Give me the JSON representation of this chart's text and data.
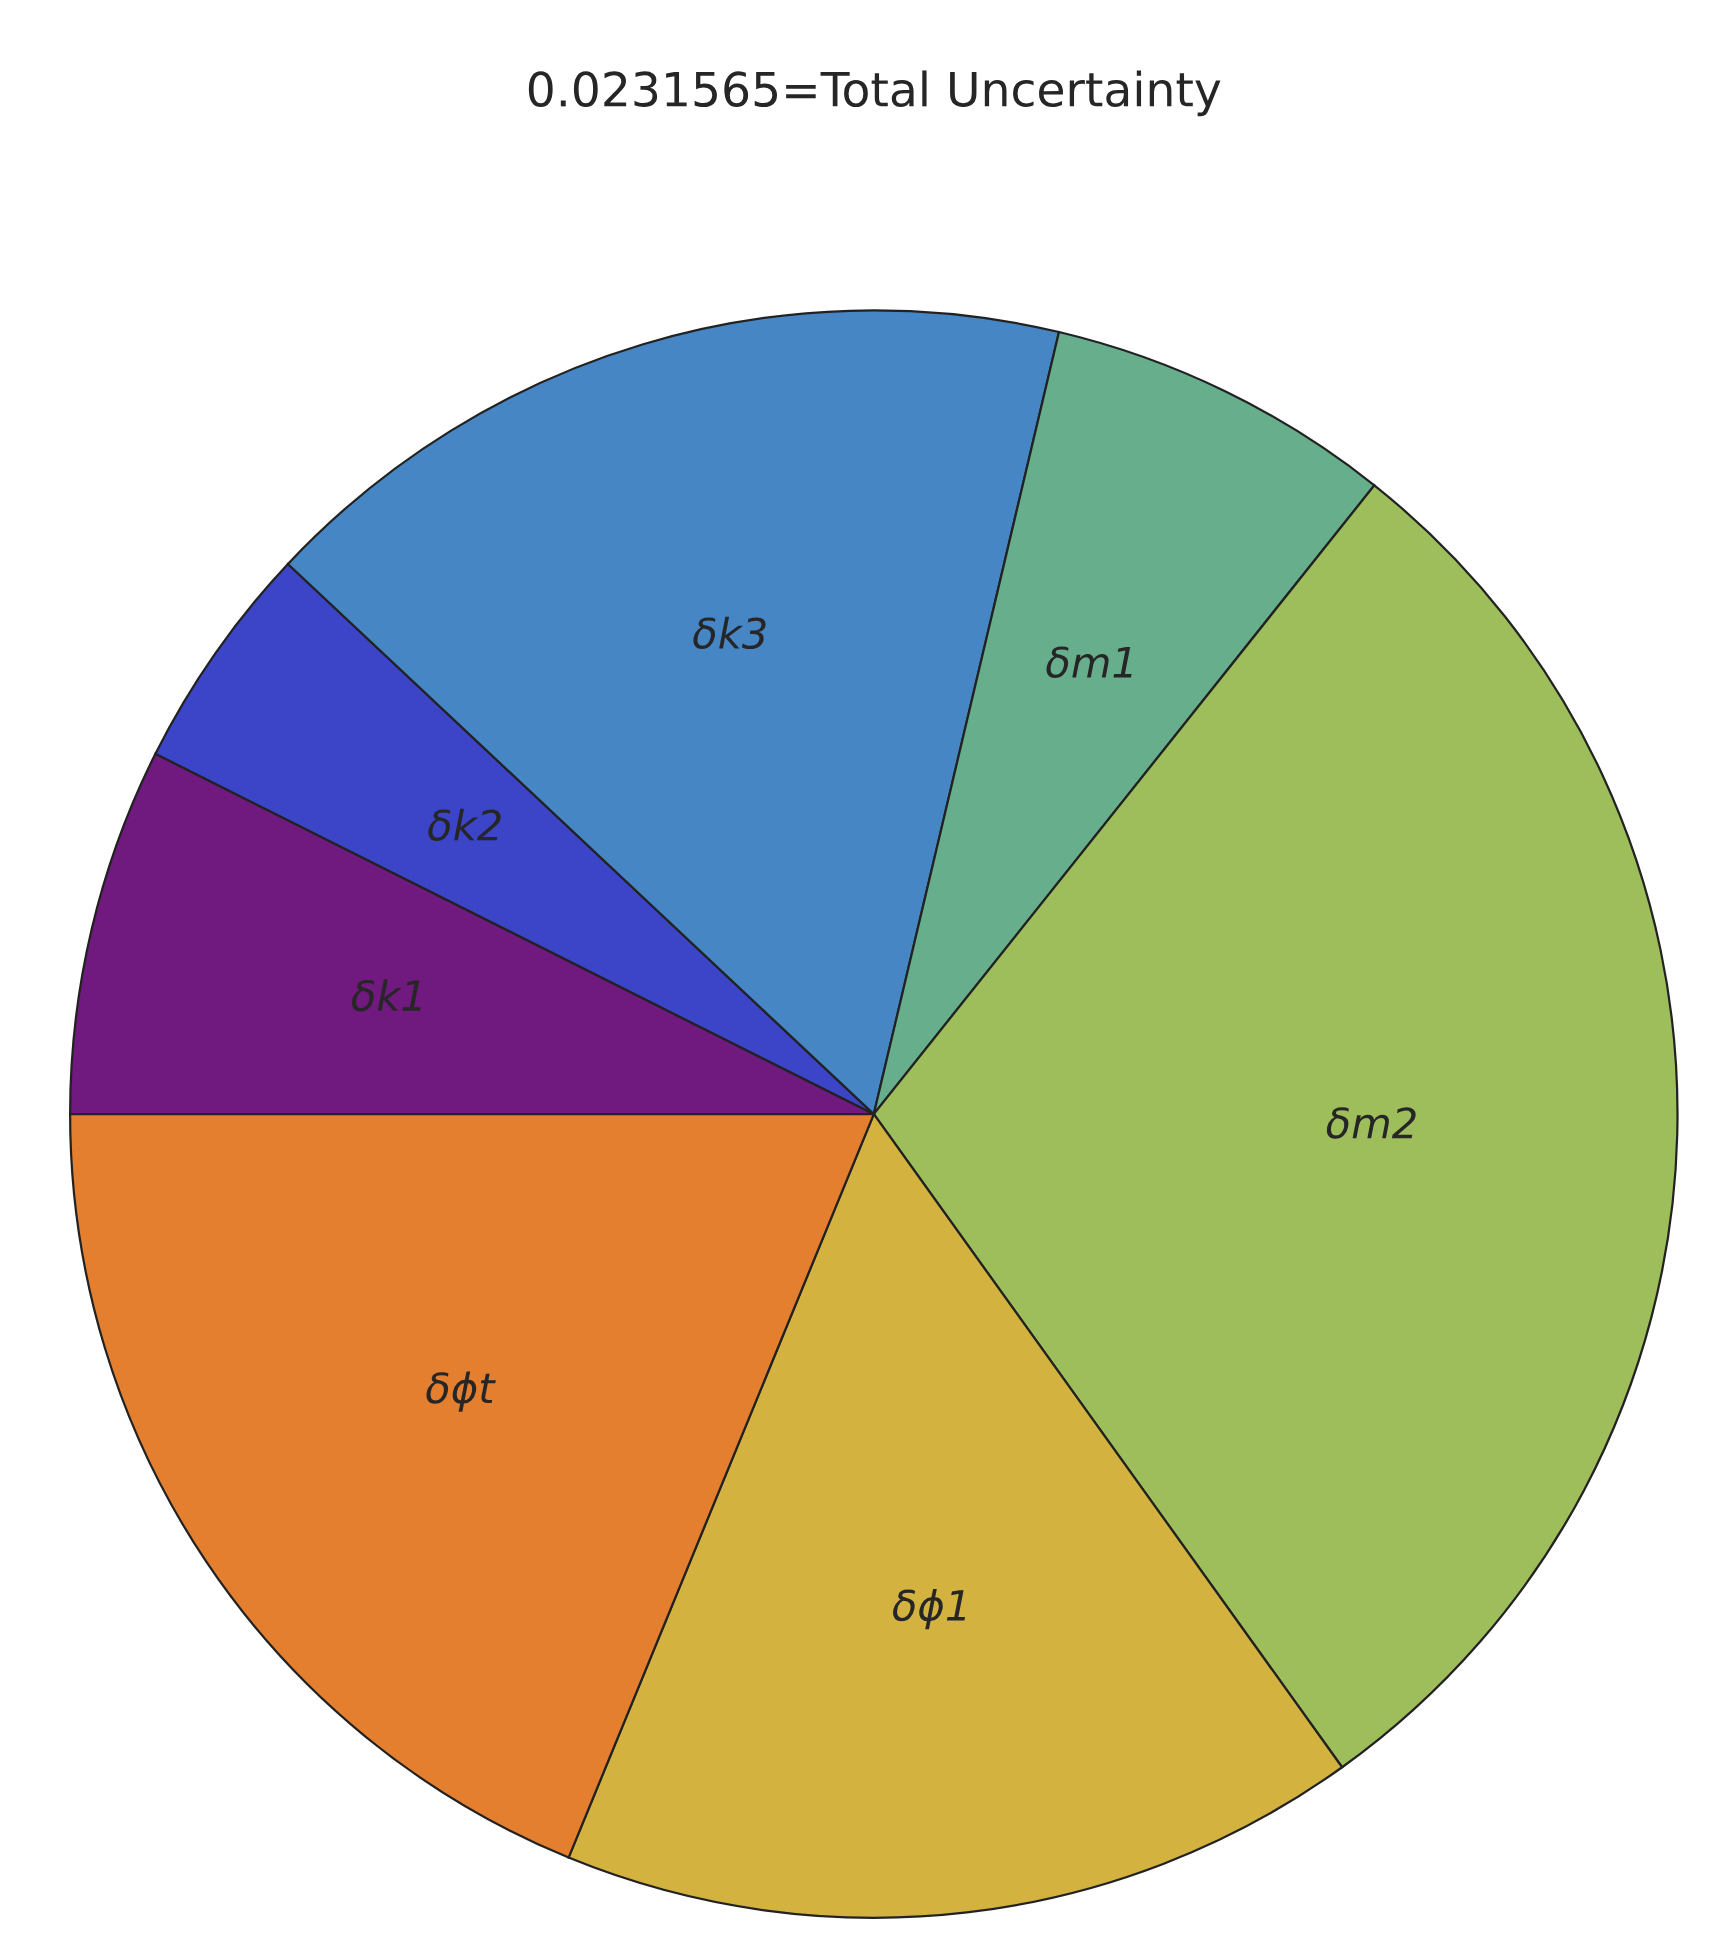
{
  "chart_data": {
    "type": "pie",
    "title": "0.0231565=Total Uncertainty",
    "categories": [
      "δk1",
      "δk2",
      "δk3",
      "δm1",
      "δm2",
      "δϕ1",
      "δϕt"
    ],
    "values": [
      7.4,
      4.6,
      16.7,
      7.0,
      29.4,
      16.1,
      18.8
    ],
    "colors": [
      "#70197f",
      "#3c45c8",
      "#4686c4",
      "#67af8c",
      "#9dbe5a",
      "#d3b240",
      "#e57f30"
    ]
  }
}
